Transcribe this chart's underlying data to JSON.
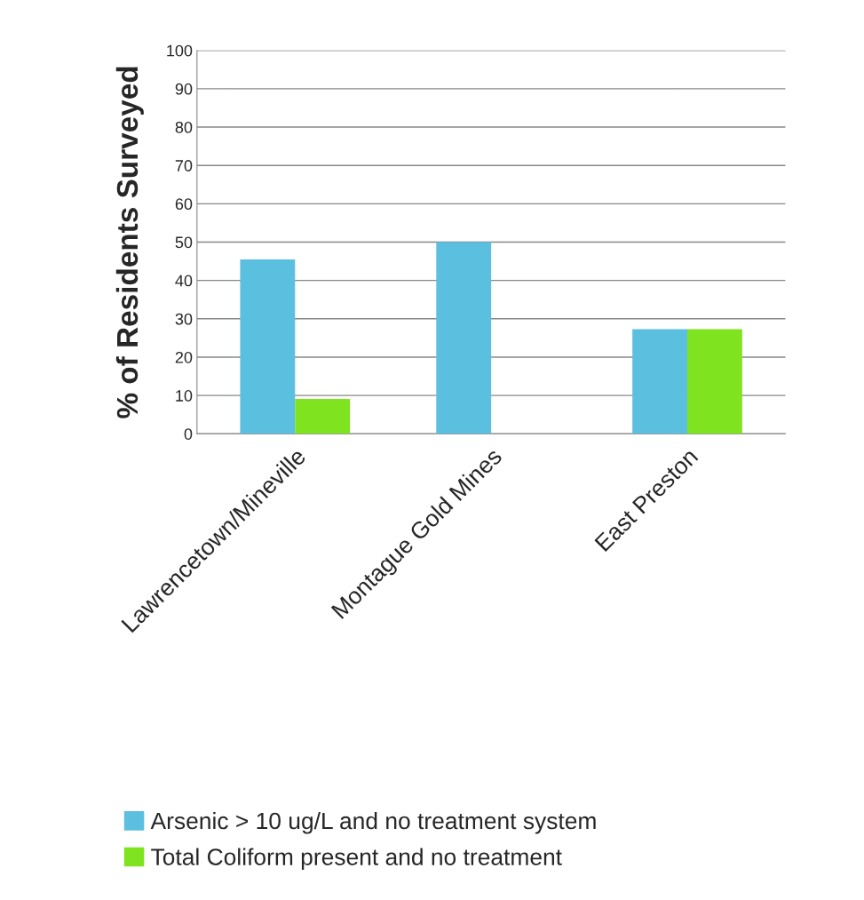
{
  "chart_data": {
    "type": "bar",
    "ylabel": "% of Residents Surveyed",
    "categories": [
      "Lawrencetown/Mineville",
      "Montague Gold Mines",
      "East Preston"
    ],
    "series": [
      {
        "name": "Arsenic > 10 ug/L and no treatment system",
        "color": "#5bbfe0",
        "values": [
          45.5,
          50,
          27.3
        ]
      },
      {
        "name": "Total Coliform present and no treatment",
        "color": "#80e31f",
        "values": [
          9.1,
          null,
          27.3
        ]
      }
    ],
    "ylim": [
      0,
      100
    ],
    "yticks": [
      0,
      10,
      20,
      30,
      40,
      50,
      60,
      70,
      80,
      90,
      100
    ],
    "grid": "y",
    "legend": "bottom"
  }
}
